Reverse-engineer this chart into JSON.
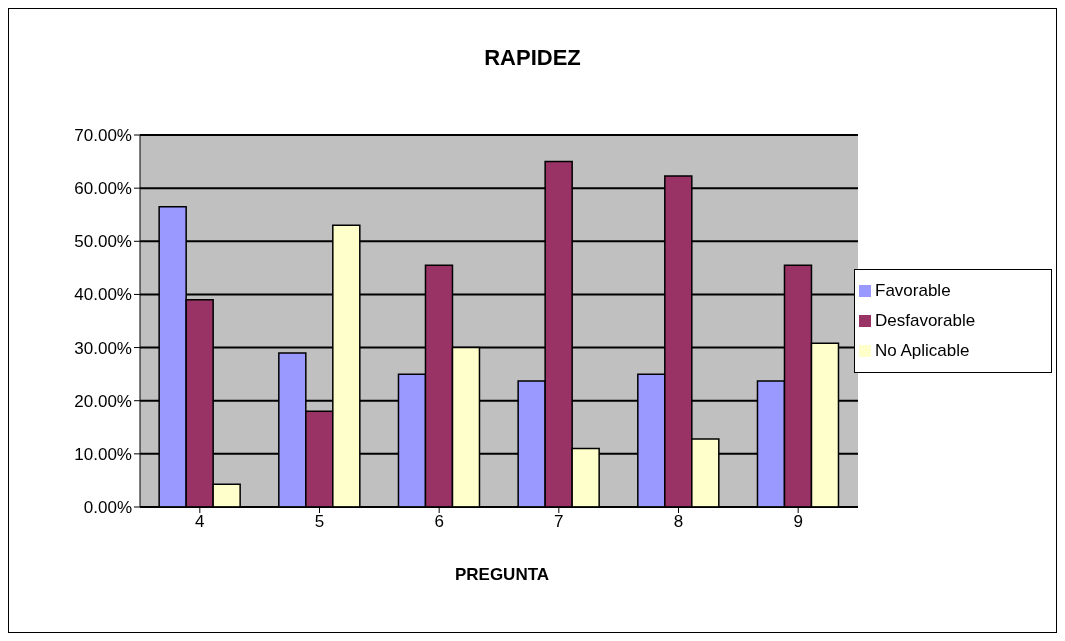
{
  "chart_data": {
    "type": "bar",
    "title": "RAPIDEZ",
    "xlabel": "PREGUNTA",
    "categories": [
      "4",
      "5",
      "6",
      "7",
      "8",
      "9"
    ],
    "series": [
      {
        "name": "Favorable",
        "color": "#9999ff",
        "values": [
          56.5,
          29,
          25,
          23.7,
          25,
          23.7
        ]
      },
      {
        "name": "Desfavorable",
        "color": "#993366",
        "values": [
          39,
          18,
          45.5,
          65,
          62.3,
          45.5
        ]
      },
      {
        "name": "No Aplicable",
        "color": "#ffffcc",
        "values": [
          4.3,
          53,
          30,
          11,
          12.8,
          30.8
        ]
      }
    ],
    "ylim": [
      0,
      70
    ],
    "yticks": [
      {
        "value": 0,
        "label": "0.00%"
      },
      {
        "value": 10,
        "label": "10.00%"
      },
      {
        "value": 20,
        "label": "20.00%"
      },
      {
        "value": 30,
        "label": "30.00%"
      },
      {
        "value": 40,
        "label": "40.00%"
      },
      {
        "value": 50,
        "label": "50.00%"
      },
      {
        "value": 60,
        "label": "60.00%"
      },
      {
        "value": 70,
        "label": "70.00%"
      }
    ],
    "grid": "y",
    "legend": "right"
  }
}
